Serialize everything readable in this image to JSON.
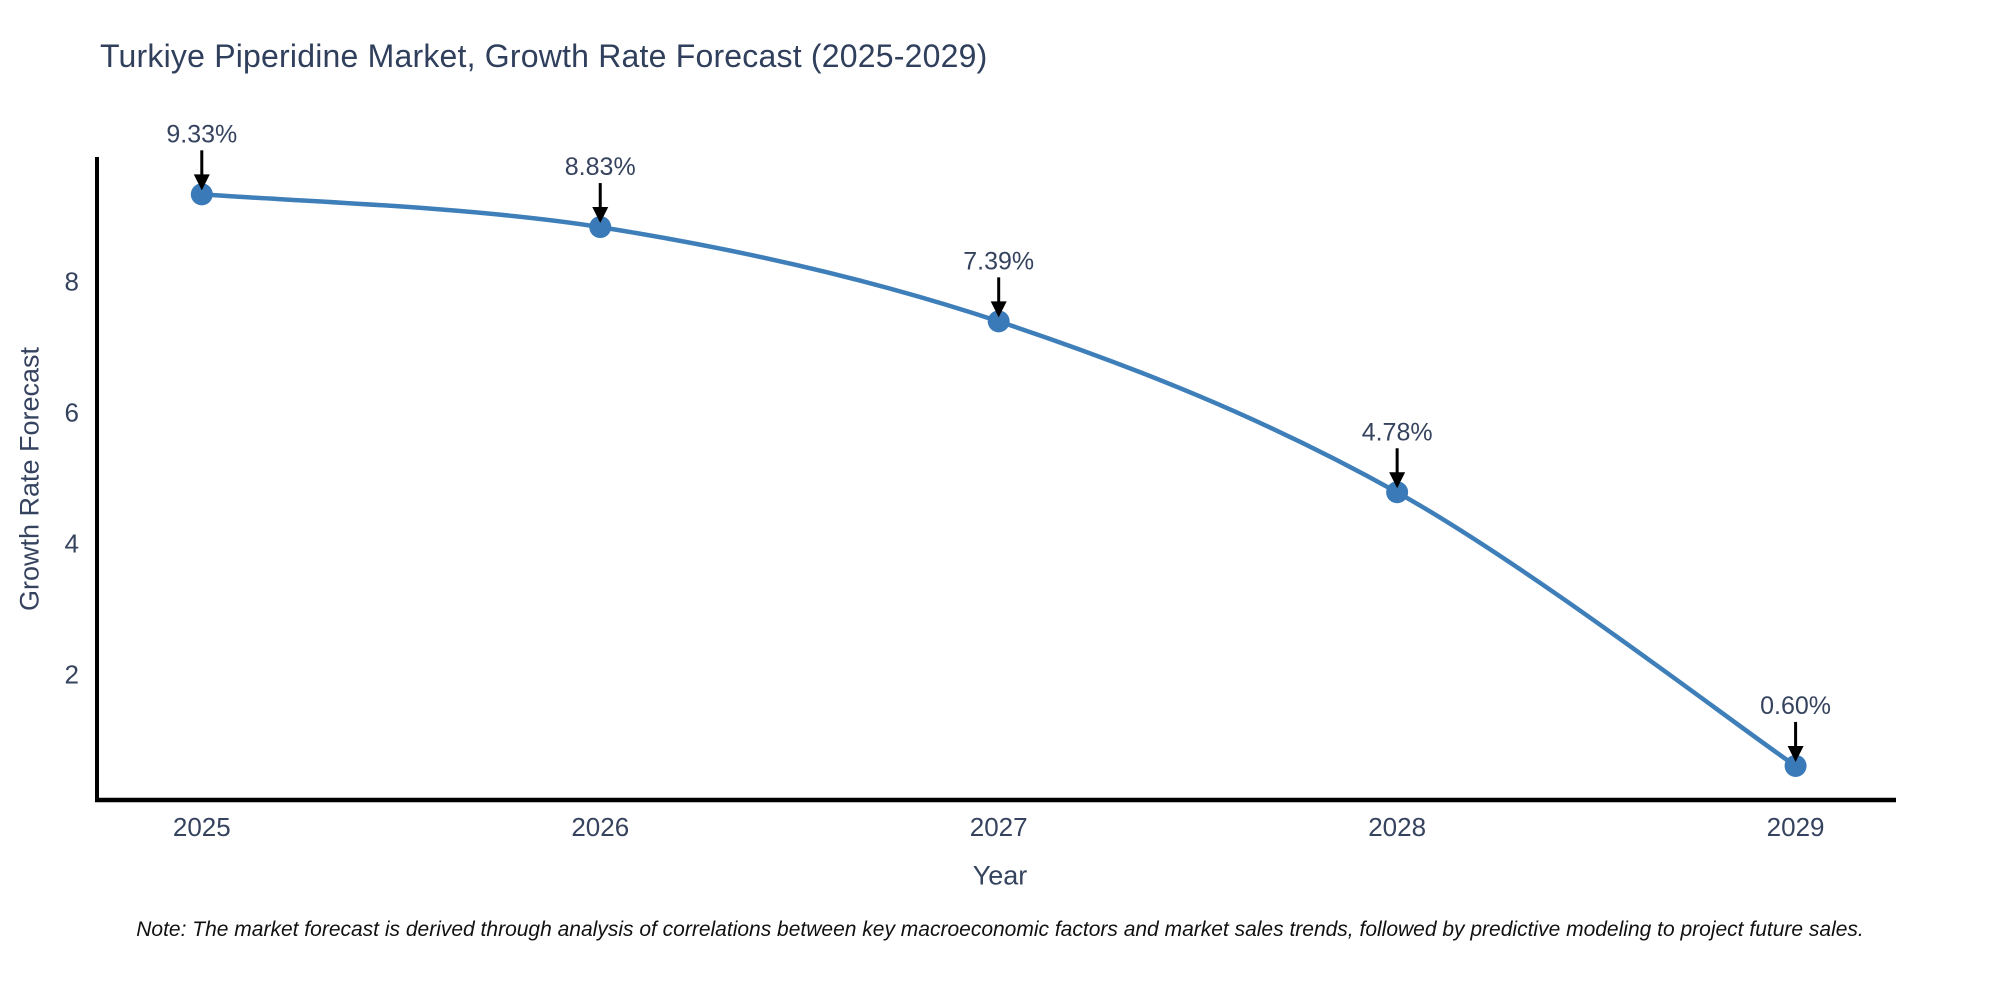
{
  "chart_data": {
    "type": "line",
    "title": "Turkiye Piperidine Market, Growth Rate Forecast (2025-2029)",
    "xlabel": "Year",
    "ylabel": "Growth Rate Forecast",
    "categories": [
      2025,
      2026,
      2027,
      2028,
      2029
    ],
    "values": [
      9.33,
      8.83,
      7.39,
      4.78,
      0.6
    ],
    "point_labels": [
      "9.33%",
      "8.83%",
      "7.39%",
      "4.78%",
      "0.60%"
    ],
    "y_ticks": [
      2,
      4,
      6,
      8
    ],
    "x_range": [
      2024.737,
      2029.252
    ],
    "y_range": [
      0.08,
      9.9
    ],
    "grid": false,
    "legend": "none",
    "note": "Note: The market forecast is derived through analysis of correlations between key macroeconomic factors and market sales trends, followed by predictive modeling to project future sales.",
    "colors": {
      "line": "#3f7fb9",
      "marker": "#3a7ab8",
      "text": "#36435e",
      "axis": "#000000",
      "annotation_arrow": "#000000",
      "note_text": "#111111",
      "background": "#ffffff"
    }
  }
}
